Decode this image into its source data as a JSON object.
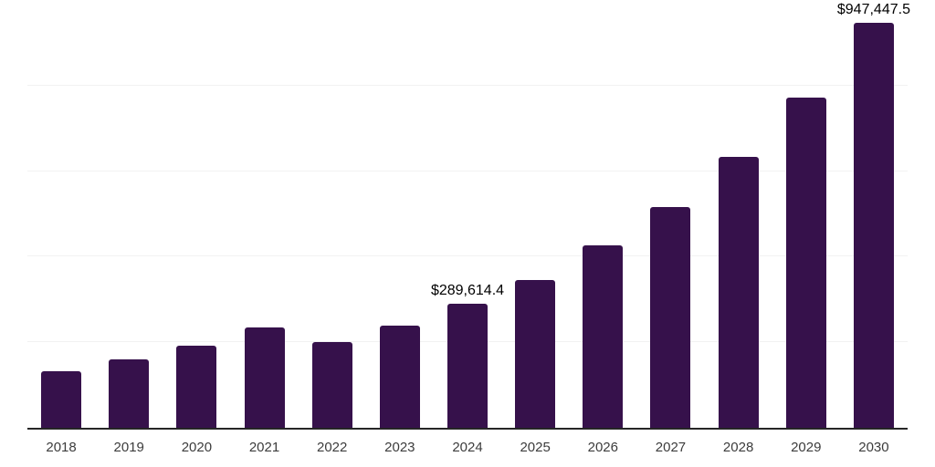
{
  "chart_data": {
    "type": "bar",
    "title": "",
    "xlabel": "",
    "ylabel": "",
    "categories": [
      "2018",
      "2019",
      "2020",
      "2021",
      "2022",
      "2023",
      "2024",
      "2025",
      "2026",
      "2027",
      "2028",
      "2029",
      "2030"
    ],
    "values": [
      132000,
      160000,
      192000,
      234500,
      200500,
      239000,
      289614.4,
      345500,
      426000,
      516000,
      633000,
      772000,
      947447.5
    ],
    "data_labels": {
      "2024": "$289,614.4",
      "2030": "$947,447.5"
    },
    "ylim": [
      0,
      1000000
    ],
    "gridlines": [
      200000,
      400000,
      600000,
      800000,
      1000000
    ],
    "grid": "horizontal-only",
    "legend": "none",
    "colors": {
      "bar": "#36114B",
      "axis_line": "#262626",
      "gridline": "#f2f2f2",
      "tick_label": "#3c3c3c",
      "data_label": "#000000",
      "background": "#ffffff"
    }
  }
}
